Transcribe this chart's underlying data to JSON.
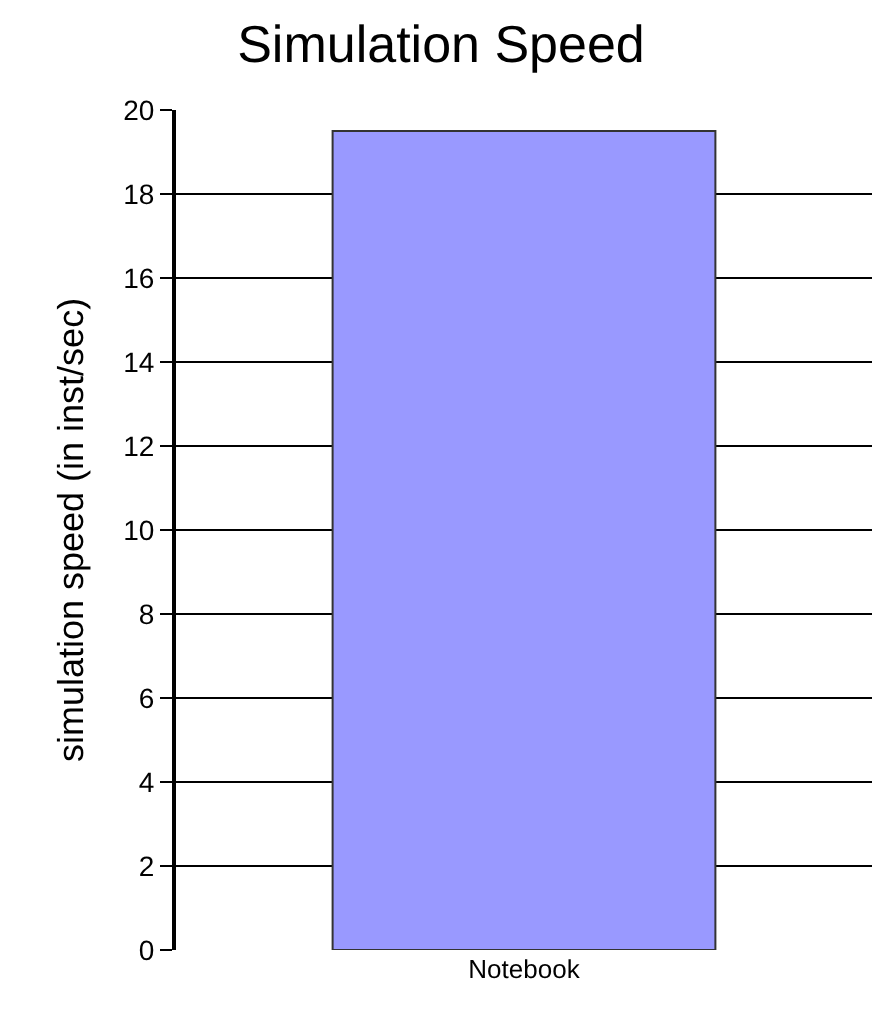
{
  "chart_data": {
    "type": "bar",
    "title": "Simulation Speed",
    "ylabel": "simulation speed (in inst/sec)",
    "categories": [
      "Notebook"
    ],
    "values": [
      19.5
    ],
    "color": "#9999ff",
    "ylim": [
      0,
      20
    ],
    "yticks": [
      0,
      2,
      4,
      6,
      8,
      10,
      12,
      14,
      16,
      18,
      20
    ],
    "grid": "y"
  }
}
